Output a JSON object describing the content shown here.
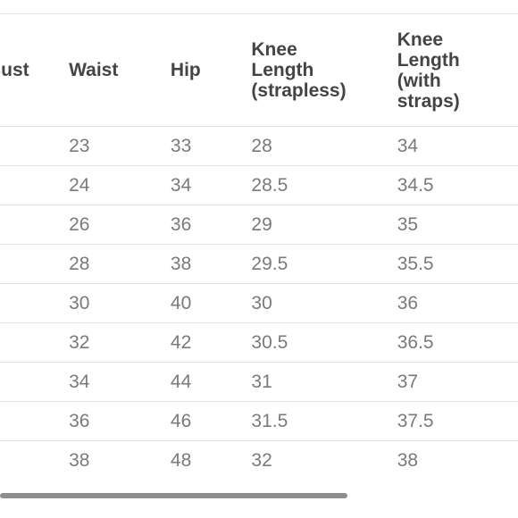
{
  "table": {
    "headers": [
      "Bust",
      "Waist",
      "Hip",
      "Knee\nLength\n(strapless)",
      "Knee\nLength\n(with\nstraps)"
    ],
    "rows": [
      [
        "",
        "23",
        "33",
        "28",
        "34"
      ],
      [
        "",
        "24",
        "34",
        "28.5",
        "34.5"
      ],
      [
        "",
        "26",
        "36",
        "29",
        "35"
      ],
      [
        "",
        "28",
        "38",
        "29.5",
        "35.5"
      ],
      [
        "",
        "30",
        "40",
        "30",
        "36"
      ],
      [
        "",
        "32",
        "42",
        "30.5",
        "36.5"
      ],
      [
        "",
        "34",
        "44",
        "31",
        "37"
      ],
      [
        "",
        "36",
        "46",
        "31.5",
        "37.5"
      ],
      [
        "",
        "38",
        "48",
        "32",
        "38"
      ]
    ]
  },
  "scrollbar": {
    "horizontal_position_fraction": 0,
    "visible_fraction": 0.67
  }
}
